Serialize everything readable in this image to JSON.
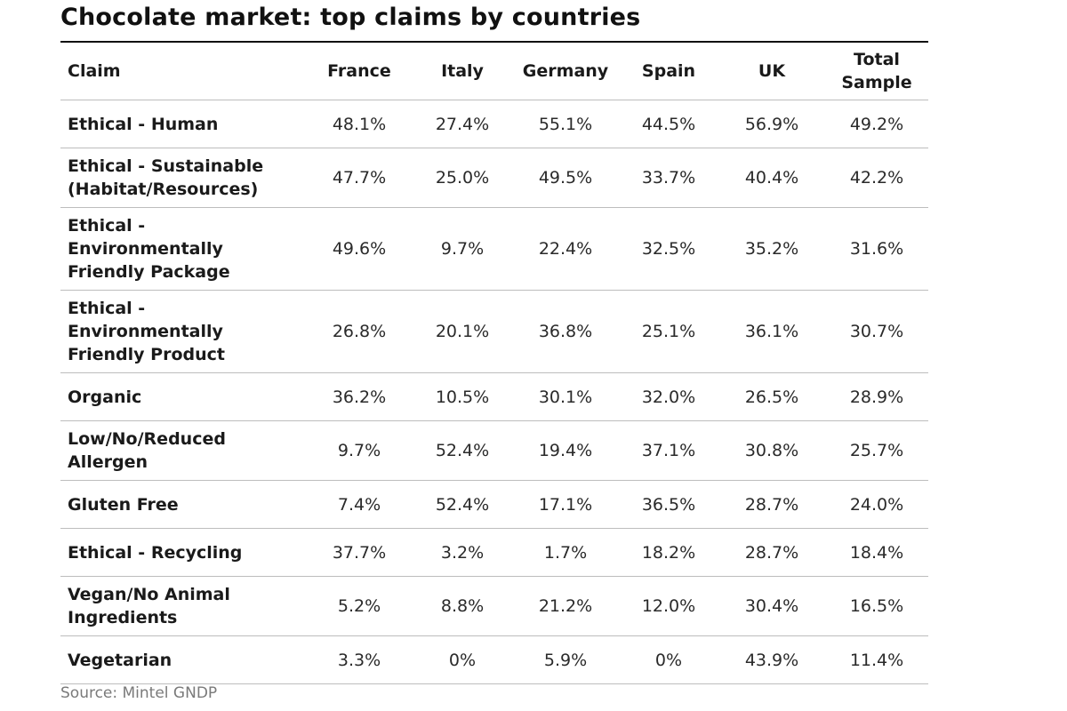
{
  "chart_data": {
    "type": "table",
    "title": "Chocolate market: top claims by countries",
    "columns": [
      "Claim",
      "France",
      "Italy",
      "Germany",
      "Spain",
      "UK",
      "Total Sample"
    ],
    "rows": [
      {
        "claim": "Ethical - Human",
        "values": [
          "48.1%",
          "27.4%",
          "55.1%",
          "44.5%",
          "56.9%",
          "49.2%"
        ]
      },
      {
        "claim": "Ethical - Sustainable (Habitat/Resources)",
        "values": [
          "47.7%",
          "25.0%",
          "49.5%",
          "33.7%",
          "40.4%",
          "42.2%"
        ]
      },
      {
        "claim": "Ethical - Environmentally Friendly Package",
        "values": [
          "49.6%",
          "9.7%",
          "22.4%",
          "32.5%",
          "35.2%",
          "31.6%"
        ]
      },
      {
        "claim": "Ethical - Environmentally Friendly Product",
        "values": [
          "26.8%",
          "20.1%",
          "36.8%",
          "25.1%",
          "36.1%",
          "30.7%"
        ]
      },
      {
        "claim": "Organic",
        "values": [
          "36.2%",
          "10.5%",
          "30.1%",
          "32.0%",
          "26.5%",
          "28.9%"
        ]
      },
      {
        "claim": "Low/No/Reduced Allergen",
        "values": [
          "9.7%",
          "52.4%",
          "19.4%",
          "37.1%",
          "30.8%",
          "25.7%"
        ]
      },
      {
        "claim": "Gluten Free",
        "values": [
          "7.4%",
          "52.4%",
          "17.1%",
          "36.5%",
          "28.7%",
          "24.0%"
        ]
      },
      {
        "claim": "Ethical - Recycling",
        "values": [
          "37.7%",
          "3.2%",
          "1.7%",
          "18.2%",
          "28.7%",
          "18.4%"
        ]
      },
      {
        "claim": "Vegan/No Animal Ingredients",
        "values": [
          "5.2%",
          "8.8%",
          "21.2%",
          "12.0%",
          "30.4%",
          "16.5%"
        ]
      },
      {
        "claim": "Vegetarian",
        "values": [
          "3.3%",
          "0%",
          "5.9%",
          "0%",
          "43.9%",
          "11.4%"
        ]
      }
    ],
    "source": "Source: Mintel GNDP"
  }
}
